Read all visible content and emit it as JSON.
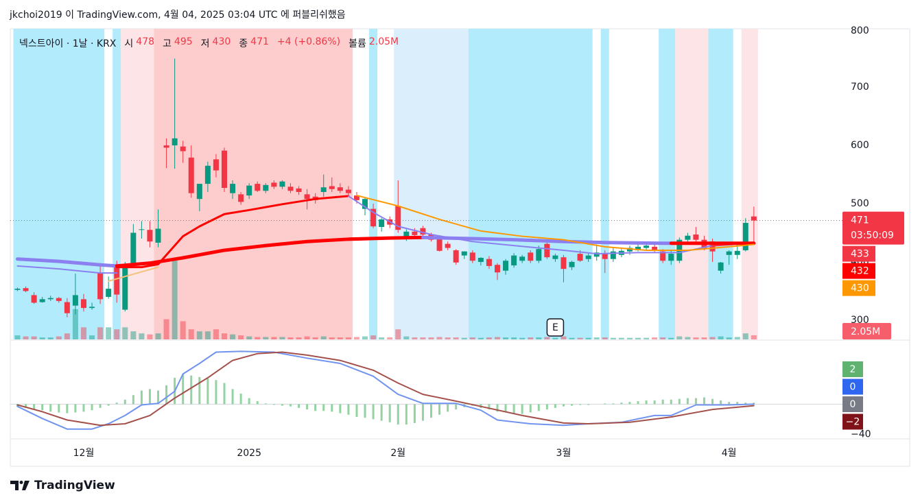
{
  "header": {
    "publisher_line": "jkchoi2019 이 TradingView.com, 4월 04, 2025 03:04 UTC 에 퍼블리쉬했음"
  },
  "footer": {
    "brand": "TradingView"
  },
  "chart_data": {
    "type": "candlestick",
    "symbol": "넥스트아이 · 1날 · KRX",
    "ohlc_labels": [
      "시",
      "고",
      "저",
      "종"
    ],
    "change_label": "+4 (+0.86%)",
    "volume_label": "볼륨",
    "countdown": "03:50:09",
    "categories": [
      null,
      null,
      null,
      null,
      null,
      null,
      null,
      null,
      "12월",
      null,
      null,
      null,
      null,
      null,
      null,
      null,
      null,
      null,
      null,
      null,
      null,
      null,
      null,
      null,
      null,
      null,
      null,
      null,
      "2025",
      null,
      null,
      null,
      null,
      null,
      null,
      null,
      null,
      null,
      null,
      null,
      null,
      null,
      null,
      null,
      null,
      null,
      "2월",
      null,
      null,
      null,
      null,
      null,
      null,
      null,
      null,
      null,
      null,
      null,
      null,
      null,
      null,
      null,
      null,
      null,
      null,
      null,
      "3월",
      null,
      null,
      null,
      null,
      null,
      null,
      null,
      null,
      null,
      null,
      null,
      null,
      null,
      null,
      null,
      null,
      null,
      null,
      null,
      "4월",
      null,
      null,
      null
    ],
    "open": [
      352,
      355,
      343,
      331,
      336,
      338,
      331,
      325,
      336,
      321,
      381,
      340,
      394,
      318,
      393,
      455,
      455,
      433,
      600,
      600,
      598,
      579,
      508,
      534,
      576,
      591,
      518,
      516,
      514,
      534,
      522,
      536,
      529,
      529,
      526,
      516,
      512,
      520,
      530,
      528,
      524,
      514,
      491,
      491,
      460,
      473,
      496,
      440,
      452,
      458,
      447,
      440,
      431,
      420,
      411,
      416,
      400,
      405,
      395,
      385,
      394,
      402,
      416,
      402,
      431,
      405,
      408,
      391,
      414,
      405,
      409,
      414,
      405,
      412,
      418,
      420,
      424,
      426,
      418,
      402,
      402,
      438,
      447,
      438,
      435,
      385,
      412,
      412,
      420,
      478
    ],
    "high": [
      356,
      358,
      348,
      340,
      342,
      340,
      338,
      380,
      345,
      330,
      395,
      375,
      402,
      400,
      465,
      470,
      470,
      490,
      612,
      749,
      608,
      600,
      534,
      572,
      585,
      596,
      540,
      520,
      535,
      538,
      535,
      540,
      540,
      535,
      530,
      525,
      518,
      550,
      545,
      535,
      530,
      520,
      510,
      500,
      475,
      478,
      540,
      456,
      458,
      462,
      450,
      442,
      435,
      422,
      418,
      420,
      408,
      410,
      398,
      405,
      415,
      412,
      420,
      428,
      435,
      414,
      412,
      402,
      420,
      415,
      430,
      420,
      425,
      422,
      428,
      430,
      432,
      430,
      422,
      420,
      442,
      450,
      460,
      445,
      440,
      400,
      420,
      430,
      475,
      495
    ],
    "low": [
      350,
      348,
      328,
      330,
      333,
      330,
      305,
      310,
      315,
      318,
      328,
      337,
      330,
      315,
      390,
      440,
      425,
      425,
      561,
      560,
      570,
      510,
      487,
      520,
      545,
      520,
      508,
      498,
      508,
      520,
      518,
      525,
      525,
      518,
      515,
      490,
      500,
      512,
      520,
      518,
      512,
      500,
      480,
      458,
      452,
      458,
      450,
      436,
      444,
      445,
      435,
      418,
      420,
      395,
      405,
      398,
      394,
      388,
      369,
      378,
      390,
      398,
      398,
      398,
      405,
      400,
      365,
      386,
      400,
      400,
      402,
      381,
      400,
      408,
      412,
      418,
      420,
      415,
      398,
      395,
      398,
      430,
      430,
      420,
      400,
      380,
      395,
      405,
      418,
      430
    ],
    "close": [
      354,
      350,
      330,
      336,
      338,
      333,
      312,
      343,
      321,
      323,
      336,
      354,
      344,
      393,
      450,
      456,
      435,
      457,
      596,
      612,
      590,
      518,
      534,
      565,
      557,
      527,
      534,
      503,
      531,
      522,
      532,
      529,
      538,
      522,
      520,
      508,
      506,
      528,
      525,
      522,
      518,
      506,
      508,
      461,
      473,
      464,
      455,
      452,
      446,
      447,
      438,
      419,
      424,
      399,
      418,
      402,
      407,
      393,
      382,
      402,
      411,
      409,
      402,
      422,
      408,
      411,
      388,
      400,
      402,
      411,
      416,
      405,
      418,
      419,
      424,
      426,
      428,
      419,
      402,
      414,
      438,
      445,
      438,
      422,
      418,
      399,
      418,
      419,
      467,
      471
    ],
    "up_color": "#089981",
    "down_color": "#f23645",
    "volume": [
      2000000,
      1500000,
      1500000,
      1000000,
      1000000,
      1500000,
      3000000,
      15000000,
      6000000,
      2000000,
      6000000,
      6000000,
      5000000,
      6000000,
      4000000,
      3000000,
      2500000,
      3000000,
      10000000,
      39000000,
      9000000,
      5000000,
      4000000,
      4000000,
      5000000,
      3000000,
      2500000,
      2000000,
      1500000,
      1200000,
      1200000,
      1200000,
      1200000,
      1000000,
      1000000,
      1500000,
      1000000,
      1500000,
      1000000,
      1000000,
      1000000,
      1200000,
      1500000,
      2000000,
      1000000,
      1000000,
      5000000,
      1500000,
      1000000,
      1000000,
      1000000,
      1200000,
      1000000,
      1000000,
      800000,
      1000000,
      800000,
      1000000,
      1200000,
      1000000,
      1000000,
      800000,
      1000000,
      1000000,
      1200000,
      800000,
      1500000,
      800000,
      800000,
      800000,
      1000000,
      1000000,
      800000,
      800000,
      800000,
      800000,
      800000,
      1000000,
      1000000,
      800000,
      1500000,
      1200000,
      1000000,
      1000000,
      1200000,
      1500000,
      1000000,
      1200000,
      3000000,
      2050000
    ],
    "volume_labels": [
      null,
      null,
      null,
      null,
      null,
      null,
      null,
      null,
      null,
      null,
      null,
      null,
      null,
      null,
      null,
      null,
      null,
      null,
      null,
      null,
      null,
      null,
      null,
      null,
      null,
      null,
      null,
      null,
      null,
      null,
      null,
      null,
      null,
      null,
      null,
      null,
      null,
      null,
      null,
      null,
      null,
      null,
      null,
      null,
      null,
      null,
      null,
      null,
      null,
      null,
      null,
      null,
      null,
      null,
      null,
      null,
      null,
      null,
      null,
      null,
      null,
      null,
      null,
      null,
      null,
      null,
      null,
      null,
      null,
      null,
      null,
      null,
      null,
      null,
      null,
      null,
      null,
      null,
      null,
      null,
      null,
      null,
      null,
      null,
      null,
      null,
      null,
      null,
      null,
      "2.05M"
    ],
    "ylim": [
      267,
      800
    ],
    "yticks": [
      300,
      400,
      500,
      600,
      700,
      800
    ],
    "bands": [
      {
        "from": 0,
        "to": 10,
        "color": "#b2ebfb"
      },
      {
        "from": 12,
        "to": 12,
        "color": "#b2ebfb"
      },
      {
        "from": 13,
        "to": 16,
        "color": "#fde4e6"
      },
      {
        "from": 17,
        "to": 40,
        "color": "#fdcccd"
      },
      {
        "from": 43,
        "to": 43,
        "color": "#b2ebfb"
      },
      {
        "from": 46,
        "to": 54,
        "color": "#daeffb"
      },
      {
        "from": 55,
        "to": 69,
        "color": "#b2ebfb"
      },
      {
        "from": 71,
        "to": 71,
        "color": "#b2ebfb"
      },
      {
        "from": 78,
        "to": 79,
        "color": "#b2ebfb"
      },
      {
        "from": 80,
        "to": 83,
        "color": "#fde4e6"
      },
      {
        "from": 84,
        "to": 86,
        "color": "#b2ebfb"
      },
      {
        "from": 88,
        "to": 89,
        "color": "#fde4e6"
      }
    ],
    "lines": [
      {
        "color": "#8c7ff0",
        "width": 5,
        "x": [
          0,
          5,
          10,
          12
        ],
        "values": [
          405,
          401,
          395,
          393
        ]
      },
      {
        "color": "#8c7ff0",
        "width": 2,
        "x": [
          0,
          5,
          10,
          12
        ],
        "values": [
          393,
          388,
          381,
          381
        ]
      },
      {
        "color": "#f5c27a",
        "width": 2,
        "x": [
          11,
          14,
          17
        ],
        "values": [
          367,
          379,
          391
        ]
      },
      {
        "color": "#ff0000",
        "width": 3,
        "x": [
          12,
          15,
          17,
          20,
          22,
          25,
          28,
          32,
          36,
          40
        ],
        "values": [
          391,
          391,
          396,
          444,
          461,
          482,
          489,
          499,
          508,
          513
        ]
      },
      {
        "color": "#ff0000",
        "width": 5,
        "x": [
          12,
          16,
          20,
          25,
          30,
          35,
          40,
          45,
          49
        ],
        "values": [
          393,
          398,
          407,
          420,
          428,
          435,
          439,
          441,
          442
        ]
      },
      {
        "color": "#8c7ff0",
        "width": 5,
        "x": [
          49,
          55,
          60,
          66,
          72,
          78,
          79
        ],
        "values": [
          442,
          440,
          438,
          435,
          433,
          432,
          432
        ]
      },
      {
        "color": "#8c7ff0",
        "width": 2,
        "x": [
          40,
          43,
          46,
          50,
          55,
          60,
          66,
          70,
          75,
          80,
          84
        ],
        "values": [
          513,
          485,
          461,
          447,
          435,
          428,
          420,
          414,
          416,
          416,
          428
        ]
      },
      {
        "color": "#f23645",
        "width": 3,
        "x": [
          84,
          89
        ],
        "values": [
          428,
          433
        ],
        "axis_label": true
      },
      {
        "color": "#ff0000",
        "width": 5,
        "x": [
          79,
          85,
          89
        ],
        "values": [
          432,
          432,
          432
        ],
        "axis_label": true
      },
      {
        "color": "#ff9800",
        "width": 2,
        "x": [
          41,
          46,
          51,
          56,
          61,
          66,
          71,
          76,
          81,
          86,
          89
        ],
        "values": [
          514,
          496,
          473,
          453,
          444,
          438,
          426,
          420,
          420,
          426,
          430
        ],
        "axis_label": true
      }
    ],
    "events": [
      {
        "index": 65,
        "label": "E"
      }
    ],
    "macd": {
      "ylim": [
        -46,
        84
      ],
      "yticks": [
        {
          "value": -40,
          "label": "−40"
        }
      ],
      "zero": 0,
      "zero_color": "#787b86",
      "histogram": {
        "color": "#93d3a0",
        "label_color": "#5fb36f",
        "values": [
          -3,
          -5,
          -7,
          -8,
          -10,
          -11,
          -12,
          -11,
          -10,
          -8,
          -5,
          -2,
          2,
          6,
          12,
          18,
          20,
          18,
          25,
          35,
          40,
          38,
          36,
          34,
          32,
          28,
          20,
          14,
          8,
          4,
          1,
          -1,
          -2,
          -3,
          -5,
          -7,
          -9,
          -9,
          -10,
          -12,
          -14,
          -17,
          -18,
          -20,
          -22,
          -24,
          -27,
          -27,
          -25,
          -22,
          -18,
          -14,
          -10,
          -7,
          -4,
          -2,
          -5,
          -7,
          -10,
          -11,
          -12,
          -13,
          -11,
          -9,
          -7,
          -5,
          -3,
          -2,
          -1,
          -1,
          0,
          1,
          1,
          2,
          3,
          4,
          5,
          5,
          6,
          6,
          7,
          8,
          8,
          9,
          7,
          5,
          3,
          3,
          2,
          2
        ]
      },
      "macd": {
        "color": "#6f93ef",
        "label_color": "#2f66f0",
        "x": [
          0,
          3,
          6,
          9,
          11,
          13,
          15,
          17,
          19,
          20,
          22,
          24,
          27,
          31,
          35,
          39,
          43,
          46,
          49,
          53,
          56,
          58,
          62,
          66,
          69,
          73,
          77,
          79,
          82,
          86,
          89
        ],
        "values": [
          -3,
          -19,
          -33,
          -33,
          -26,
          -15,
          -1,
          1,
          17,
          40,
          54,
          69,
          70,
          69,
          61,
          54,
          37,
          13,
          1,
          1,
          -8,
          -21,
          -26,
          -28,
          -26,
          -24,
          -15,
          -15,
          -1,
          -1,
          0
        ]
      },
      "signal": {
        "color": "#a4504a",
        "label_color": "#80131a",
        "x": [
          0,
          3,
          6,
          10,
          13,
          16,
          19,
          23,
          26,
          29,
          32,
          35,
          39,
          43,
          46,
          49,
          53,
          56,
          61,
          66,
          69,
          74,
          79,
          84,
          89
        ],
        "values": [
          -1,
          -10,
          -21,
          -28,
          -26,
          -15,
          8,
          35,
          58,
          67,
          69,
          65,
          58,
          45,
          28,
          13,
          4,
          -3,
          -15,
          -25,
          -26,
          -24,
          -17,
          -7,
          -2
        ],
        "value_labels": [
          null,
          null,
          null,
          null,
          null,
          null,
          null,
          null,
          null,
          null,
          null,
          null,
          null,
          null,
          null,
          null,
          null,
          null,
          null,
          null,
          null,
          null,
          null,
          null,
          "−2"
        ]
      }
    }
  }
}
